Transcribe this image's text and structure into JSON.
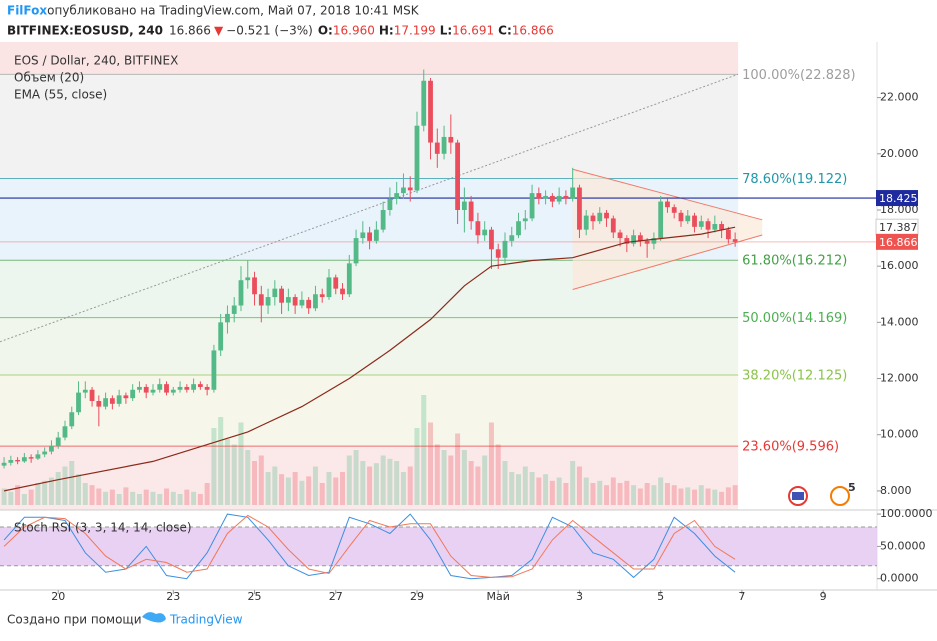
{
  "chart_data": {
    "type": "candlestick",
    "header": {
      "publisher": "FilFox",
      "published": " опубликовано на TradingView.com, Май 07, 2018 10:41 MSK",
      "symbol": "BITFINEX:EOSUSD, 240",
      "last": "16.866",
      "arrow": "▼",
      "change": "−0.521 (−3%)",
      "ohlc": [
        {
          "label": "O:",
          "value": "16.960"
        },
        {
          "label": "H:",
          "value": "17.199"
        },
        {
          "label": "L:",
          "value": "16.691"
        },
        {
          "label": "C:",
          "value": "16.866"
        }
      ]
    },
    "legend": {
      "title": "EOS / Dollar, 240, BITFINEX",
      "volume": "Объем (20)",
      "ema": "EMA (55, close)"
    },
    "up_color": "#53b987",
    "down_color": "#eb4d5c",
    "candles": [
      [
        8.9,
        9.2,
        8.8,
        9.0
      ],
      [
        9.0,
        9.25,
        8.9,
        9.1
      ],
      [
        9.1,
        9.2,
        8.95,
        9.05
      ],
      [
        9.05,
        9.35,
        9.0,
        9.2
      ],
      [
        9.2,
        9.3,
        9.0,
        9.15
      ],
      [
        9.15,
        9.45,
        9.1,
        9.3
      ],
      [
        9.3,
        9.55,
        9.2,
        9.4
      ],
      [
        9.4,
        9.8,
        9.3,
        9.6
      ],
      [
        9.6,
        10.1,
        9.5,
        9.9
      ],
      [
        9.9,
        10.5,
        9.8,
        10.3
      ],
      [
        10.3,
        11.0,
        10.2,
        10.8
      ],
      [
        10.8,
        11.9,
        10.7,
        11.5
      ],
      [
        11.5,
        11.9,
        11.3,
        11.6
      ],
      [
        11.6,
        11.7,
        11.0,
        11.2
      ],
      [
        11.2,
        11.4,
        10.3,
        11.0
      ],
      [
        11.0,
        11.5,
        10.9,
        11.3
      ],
      [
        11.3,
        11.4,
        10.9,
        11.1
      ],
      [
        11.1,
        11.6,
        11.0,
        11.4
      ],
      [
        11.4,
        11.5,
        11.1,
        11.3
      ],
      [
        11.3,
        11.8,
        11.2,
        11.6
      ],
      [
        11.6,
        11.9,
        11.5,
        11.7
      ],
      [
        11.7,
        11.8,
        11.3,
        11.5
      ],
      [
        11.5,
        11.8,
        11.4,
        11.6
      ],
      [
        11.6,
        12.0,
        11.5,
        11.8
      ],
      [
        11.8,
        11.9,
        11.4,
        11.5
      ],
      [
        11.5,
        11.7,
        11.4,
        11.6
      ],
      [
        11.6,
        11.9,
        11.5,
        11.7
      ],
      [
        11.7,
        11.8,
        11.5,
        11.6
      ],
      [
        11.6,
        12.0,
        11.5,
        11.8
      ],
      [
        11.8,
        11.9,
        11.6,
        11.7
      ],
      [
        11.7,
        11.8,
        11.4,
        11.6
      ],
      [
        11.6,
        13.2,
        11.5,
        13.0
      ],
      [
        13.0,
        14.3,
        12.8,
        14.0
      ],
      [
        14.0,
        14.6,
        13.6,
        14.3
      ],
      [
        14.3,
        14.9,
        14.0,
        14.6
      ],
      [
        14.6,
        16.0,
        14.4,
        15.5
      ],
      [
        15.5,
        16.2,
        15.2,
        15.6
      ],
      [
        15.6,
        15.8,
        14.6,
        15.0
      ],
      [
        15.0,
        15.3,
        14.0,
        14.6
      ],
      [
        14.6,
        15.2,
        14.3,
        14.9
      ],
      [
        14.9,
        15.5,
        14.6,
        15.2
      ],
      [
        15.2,
        15.3,
        14.3,
        14.7
      ],
      [
        14.7,
        15.2,
        14.4,
        14.9
      ],
      [
        14.9,
        15.0,
        14.3,
        14.6
      ],
      [
        14.6,
        15.1,
        14.5,
        14.8
      ],
      [
        14.8,
        14.9,
        14.3,
        14.5
      ],
      [
        14.5,
        15.3,
        14.4,
        15.0
      ],
      [
        15.0,
        15.2,
        14.7,
        14.9
      ],
      [
        14.9,
        15.9,
        14.8,
        15.6
      ],
      [
        15.6,
        15.7,
        15.0,
        15.2
      ],
      [
        15.2,
        15.4,
        14.8,
        15.0
      ],
      [
        15.0,
        16.4,
        14.9,
        16.1
      ],
      [
        16.1,
        17.3,
        16.0,
        17.0
      ],
      [
        17.0,
        17.6,
        16.8,
        17.2
      ],
      [
        17.2,
        17.4,
        16.6,
        16.9
      ],
      [
        16.9,
        17.6,
        16.8,
        17.3
      ],
      [
        17.3,
        18.3,
        17.2,
        18.0
      ],
      [
        18.0,
        18.8,
        17.8,
        18.4
      ],
      [
        18.4,
        19.0,
        18.2,
        18.6
      ],
      [
        18.6,
        19.3,
        18.4,
        18.8
      ],
      [
        18.8,
        19.2,
        18.3,
        18.7
      ],
      [
        18.7,
        21.5,
        18.6,
        21.0
      ],
      [
        21.0,
        23.0,
        20.8,
        22.6
      ],
      [
        22.6,
        22.7,
        19.8,
        20.4
      ],
      [
        20.4,
        20.9,
        19.5,
        20.0
      ],
      [
        20.0,
        21.0,
        19.8,
        20.6
      ],
      [
        20.6,
        21.4,
        20.0,
        20.4
      ],
      [
        20.4,
        20.5,
        17.5,
        18.0
      ],
      [
        18.0,
        18.8,
        17.2,
        18.3
      ],
      [
        18.3,
        18.5,
        17.3,
        17.6
      ],
      [
        17.6,
        17.9,
        16.8,
        17.1
      ],
      [
        17.1,
        17.6,
        16.9,
        17.3
      ],
      [
        17.3,
        17.4,
        15.9,
        16.6
      ],
      [
        16.6,
        16.8,
        15.9,
        16.3
      ],
      [
        16.3,
        17.2,
        16.1,
        16.9
      ],
      [
        16.9,
        17.4,
        16.7,
        17.1
      ],
      [
        17.1,
        17.9,
        17.0,
        17.6
      ],
      [
        17.6,
        18.0,
        17.3,
        17.7
      ],
      [
        17.7,
        18.9,
        17.6,
        18.6
      ],
      [
        18.6,
        18.8,
        18.2,
        18.4
      ],
      [
        18.4,
        18.7,
        18.2,
        18.5
      ],
      [
        18.5,
        18.6,
        18.1,
        18.3
      ],
      [
        18.3,
        18.8,
        18.2,
        18.5
      ],
      [
        18.5,
        18.7,
        18.2,
        18.4
      ],
      [
        18.4,
        19.5,
        18.3,
        18.8
      ],
      [
        18.8,
        18.9,
        17.0,
        17.3
      ],
      [
        17.3,
        18.0,
        17.1,
        17.8
      ],
      [
        17.8,
        17.9,
        17.3,
        17.6
      ],
      [
        17.6,
        18.1,
        17.5,
        17.9
      ],
      [
        17.9,
        18.0,
        17.4,
        17.7
      ],
      [
        17.7,
        17.8,
        17.0,
        17.2
      ],
      [
        17.2,
        17.3,
        16.7,
        17.0
      ],
      [
        17.0,
        17.1,
        16.5,
        16.8
      ],
      [
        16.8,
        17.3,
        16.7,
        17.1
      ],
      [
        17.1,
        17.2,
        16.7,
        16.9
      ],
      [
        16.9,
        17.0,
        16.3,
        16.8
      ],
      [
        16.8,
        17.2,
        16.6,
        17.0
      ],
      [
        17.0,
        18.5,
        16.9,
        18.3
      ],
      [
        18.3,
        18.4,
        17.9,
        18.1
      ],
      [
        18.1,
        18.2,
        17.7,
        17.9
      ],
      [
        17.9,
        18.0,
        17.4,
        17.6
      ],
      [
        17.6,
        18.0,
        17.5,
        17.8
      ],
      [
        17.8,
        17.9,
        17.2,
        17.4
      ],
      [
        17.4,
        17.8,
        17.3,
        17.6
      ],
      [
        17.6,
        17.7,
        17.0,
        17.3
      ],
      [
        17.3,
        17.8,
        17.2,
        17.5
      ],
      [
        17.5,
        17.6,
        17.0,
        17.3
      ],
      [
        17.3,
        17.4,
        16.8,
        16.96
      ],
      [
        16.96,
        17.199,
        16.691,
        16.866
      ]
    ],
    "volume": [
      15,
      12,
      18,
      10,
      14,
      20,
      22,
      25,
      30,
      35,
      40,
      28,
      20,
      18,
      15,
      12,
      14,
      10,
      16,
      12,
      10,
      14,
      12,
      10,
      15,
      12,
      10,
      14,
      12,
      10,
      20,
      70,
      80,
      60,
      55,
      75,
      50,
      40,
      45,
      30,
      35,
      28,
      25,
      30,
      22,
      26,
      35,
      20,
      30,
      25,
      30,
      45,
      50,
      40,
      35,
      38,
      45,
      42,
      40,
      30,
      35,
      70,
      100,
      75,
      55,
      50,
      45,
      65,
      50,
      40,
      35,
      45,
      75,
      55,
      40,
      30,
      28,
      35,
      30,
      25,
      28,
      22,
      25,
      20,
      40,
      35,
      25,
      20,
      22,
      18,
      25,
      20,
      22,
      18,
      15,
      20,
      18,
      25,
      20,
      18,
      15,
      16,
      14,
      18,
      15,
      14,
      12,
      16,
      18
    ],
    "ema": {
      "color": "#8b2a1a",
      "x": [
        0,
        8,
        22,
        36,
        44,
        51,
        57,
        63,
        68,
        72,
        78,
        84,
        92,
        103,
        108
      ],
      "values": [
        8.0,
        8.4,
        9.05,
        10.1,
        11.0,
        12.0,
        13.0,
        14.1,
        15.3,
        16.0,
        16.2,
        16.3,
        16.85,
        17.14,
        17.387
      ],
      "value_label": "17.387"
    },
    "xlim": [
      -0.6,
      129.4
    ],
    "xticks": [
      {
        "value": 8,
        "label": "20"
      },
      {
        "value": 25,
        "label": "23"
      },
      {
        "value": 37,
        "label": "25"
      },
      {
        "value": 49,
        "label": "27"
      },
      {
        "value": 61,
        "label": "29"
      },
      {
        "value": 73,
        "label": "Май"
      },
      {
        "value": 85,
        "label": "3"
      },
      {
        "value": 97,
        "label": "5"
      },
      {
        "value": 109,
        "label": "7"
      },
      {
        "value": 121,
        "label": "9"
      }
    ],
    "ylim": [
      7.32,
      23.98
    ],
    "yticks": [
      {
        "value": 8,
        "label": "8.000"
      },
      {
        "value": 10,
        "label": "10.000"
      },
      {
        "value": 12,
        "label": "12.000"
      },
      {
        "value": 14,
        "label": "14.000"
      },
      {
        "value": 16,
        "label": "16.000"
      },
      {
        "value": 18,
        "label": "18.000"
      },
      {
        "value": 20,
        "label": "20.000"
      },
      {
        "value": 22,
        "label": "22.000"
      }
    ],
    "fib": {
      "band_above": "#fbe4e4",
      "levels": [
        {
          "value": 22.828,
          "label": "100.00%(22.828)",
          "color": "#9e9e9e",
          "fill": "#f2f2f2"
        },
        {
          "value": 19.122,
          "label": "78.60%(19.122)",
          "color": "#2196a8",
          "fill": "#e9f3fb"
        },
        {
          "value": 16.212,
          "label": "61.80%(16.212)",
          "color": "#43a047",
          "fill": "#edf6ee"
        },
        {
          "value": 14.169,
          "label": "50.00%(14.169)",
          "color": "#4caf50",
          "fill": "#f0f6ec"
        },
        {
          "value": 12.125,
          "label": "38.20%(12.125)",
          "color": "#8bc34a",
          "fill": "#f6f6ea"
        },
        {
          "value": 9.596,
          "label": "23.60%(9.596)",
          "color": "#e53935",
          "fill": "#fbe9e9"
        }
      ],
      "trend": {
        "x": [
          -0.6,
          108.4
        ],
        "values": [
          13.31,
          22.828
        ]
      }
    },
    "hline": {
      "value": 18.425,
      "label": "18.425",
      "color": "#1e2a9e"
    },
    "last_price": {
      "value": 16.866,
      "label": "16.866",
      "color": "#ef5350"
    },
    "triangle": {
      "x": [
        84,
        112
      ],
      "upper": [
        19.45,
        17.65
      ],
      "lower": [
        15.17,
        17.11
      ],
      "color": "#ef7a6a",
      "fill": "#fbe8d8"
    },
    "stoch": {
      "title": "Stoch RSI (3, 3, 14, 14, close)",
      "x": [
        0,
        3,
        6,
        9,
        12,
        15,
        18,
        21,
        24,
        27,
        30,
        33,
        36,
        39,
        42,
        45,
        48,
        51,
        54,
        57,
        60,
        63,
        66,
        69,
        72,
        75,
        78,
        81,
        84,
        87,
        90,
        93,
        96,
        99,
        102,
        105,
        108
      ],
      "k": [
        60,
        95,
        95,
        90,
        40,
        10,
        15,
        50,
        5,
        0,
        40,
        100,
        95,
        60,
        20,
        5,
        10,
        95,
        85,
        70,
        100,
        60,
        5,
        0,
        2,
        5,
        30,
        95,
        80,
        40,
        30,
        2,
        30,
        95,
        70,
        35,
        10
      ],
      "d": [
        50,
        80,
        95,
        93,
        70,
        35,
        15,
        30,
        25,
        10,
        15,
        70,
        98,
        80,
        45,
        15,
        8,
        50,
        90,
        80,
        85,
        85,
        35,
        5,
        2,
        3,
        15,
        60,
        90,
        65,
        40,
        15,
        15,
        70,
        90,
        50,
        30
      ],
      "k_color": "#3d8fe0",
      "d_color": "#f0785a",
      "ylim": [
        -17.5,
        106.3
      ],
      "yticks": [
        {
          "value": 0,
          "label": "0.0000"
        },
        {
          "value": 50,
          "label": "50.0000"
        },
        {
          "value": 100,
          "label": "100.0000"
        }
      ],
      "band": [
        20,
        80
      ],
      "band_color": "#e4c6f0"
    },
    "events": "5",
    "footer": {
      "text": "Создано при помощи",
      "brand": "TradingView"
    }
  }
}
